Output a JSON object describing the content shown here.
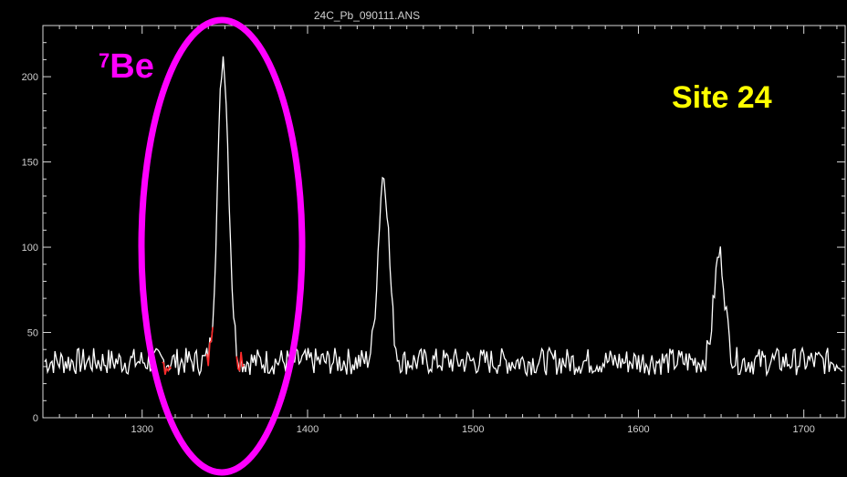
{
  "chart_data": {
    "type": "line",
    "title": "24C_Pb_090111.ANS",
    "xlim": [
      1240,
      1725
    ],
    "ylim": [
      0,
      230
    ],
    "x_ticks": [
      1300,
      1400,
      1500,
      1600,
      1700
    ],
    "y_ticks": [
      0,
      50,
      100,
      150,
      200
    ],
    "grid": false,
    "background": "#000000",
    "line_color": "#ffffff",
    "highlight_color": "#ff2a2a",
    "baseline_level": 33,
    "peaks": [
      {
        "x": 1349,
        "y": 212
      },
      {
        "x": 1446,
        "y": 143
      },
      {
        "x": 1649,
        "y": 96
      }
    ],
    "highlighted_ranges": [
      [
        1312,
        1318
      ],
      [
        1339,
        1343
      ],
      [
        1357,
        1362
      ]
    ]
  },
  "annotations": {
    "isotope_superscript": "7",
    "isotope_label": "Be",
    "site_label": "Site 24",
    "isotope_color": "#ff00ff",
    "site_color": "#ffff00"
  }
}
